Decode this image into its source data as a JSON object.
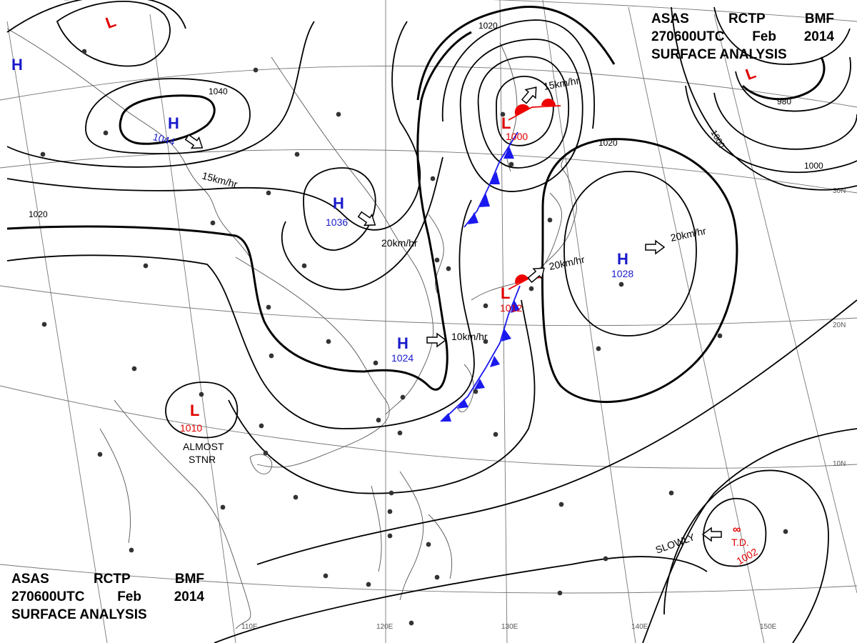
{
  "title": {
    "line1": [
      "ASAS",
      "RCTP",
      "BMF"
    ],
    "line2": [
      "270600UTC",
      "Feb",
      "2014"
    ],
    "line3": "SURFACE  ANALYSIS"
  },
  "colors": {
    "high": "#1a1acc",
    "low": "#e00000",
    "cold_front": "#1a1aee",
    "warm_front": "#ee0000",
    "isobar": "#000000",
    "grid": "#777777",
    "coast": "#555555"
  },
  "grid_labels": {
    "longitude": [
      "110E",
      "120E",
      "130E",
      "140E",
      "150E"
    ],
    "latitude": [
      "30N",
      "20N",
      "10N"
    ]
  },
  "isobar_labels": [
    "1040",
    "1020",
    "1020",
    "1020",
    "980",
    "1000",
    "1000"
  ],
  "pressure_centers": [
    {
      "letter": "L",
      "value": "",
      "type": "low"
    },
    {
      "letter": "H",
      "value": "",
      "type": "high"
    },
    {
      "letter": "H",
      "value": "1044",
      "type": "high"
    },
    {
      "letter": "H",
      "value": "1036",
      "type": "high"
    },
    {
      "letter": "L",
      "value": "1000",
      "type": "low"
    },
    {
      "letter": "L",
      "value": "",
      "type": "low"
    },
    {
      "letter": "H",
      "value": "1028",
      "type": "high"
    },
    {
      "letter": "L",
      "value": "1012",
      "type": "low"
    },
    {
      "letter": "H",
      "value": "1024",
      "type": "high"
    },
    {
      "letter": "L",
      "value": "1010",
      "type": "low"
    },
    {
      "letter": "T.D.",
      "value": "1002",
      "type": "low"
    }
  ],
  "movements": [
    {
      "text": "15km/hr",
      "dir": "se"
    },
    {
      "text": "20km/hr",
      "dir": "se"
    },
    {
      "text": "15km/hr",
      "dir": "ne"
    },
    {
      "text": "20km/hr",
      "dir": "ne"
    },
    {
      "text": "10km/hr",
      "dir": "e"
    },
    {
      "text": "20km/hr",
      "dir": "e"
    },
    {
      "text": "SLOWLY",
      "dir": "w"
    }
  ],
  "notes": {
    "stationary_line1": "ALMOST",
    "stationary_line2": "STNR"
  }
}
